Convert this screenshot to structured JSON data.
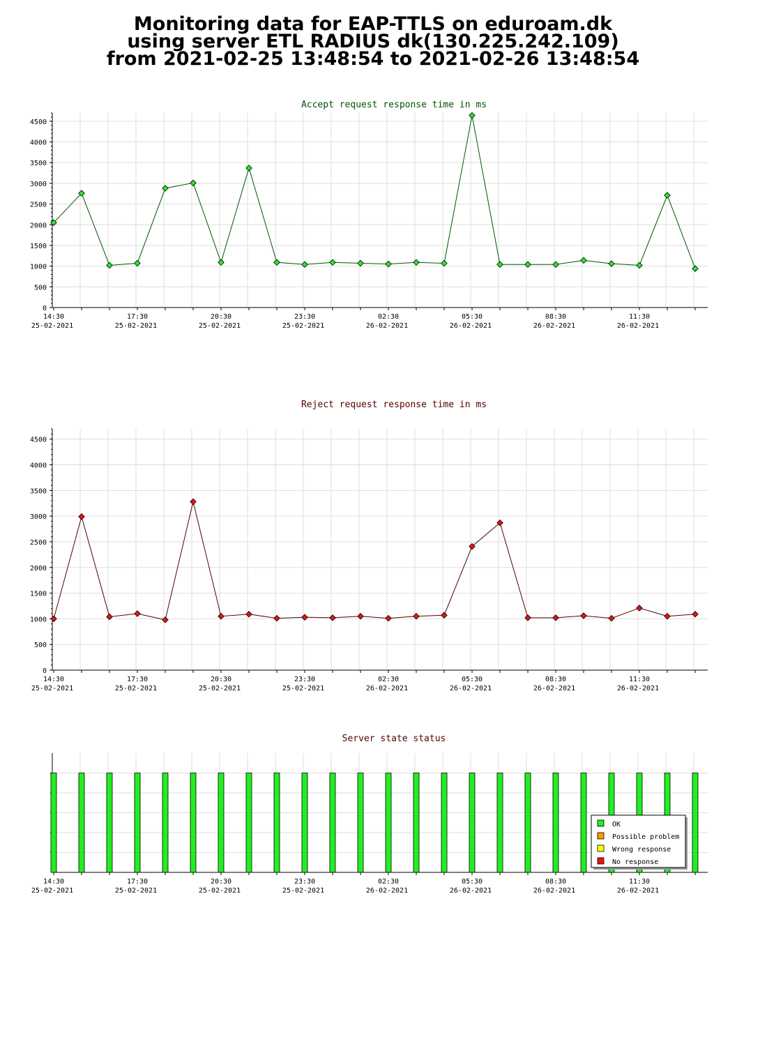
{
  "page": {
    "title_line1": "Monitoring data for EAP-TTLS on eduroam.dk",
    "title_line2": "using server ETL RADIUS dk(130.225.242.109)",
    "title_line3": "from 2021-02-25 13:48:54 to 2021-02-26 13:48:54"
  },
  "colors": {
    "accept_line": "#005500",
    "accept_marker": "#22ee22",
    "reject_line": "#550000",
    "reject_marker": "#ee1111",
    "title_accept": "#005500",
    "title_reject": "#550000",
    "status_ok": "#22ee22",
    "status_possible_problem": "#ff9900",
    "status_wrong_response": "#ffff00",
    "status_no_response": "#ee1111",
    "grid": "#dddddd"
  },
  "chart_data": [
    {
      "type": "line",
      "title": "Accept request response time in ms",
      "x": [
        "14:30",
        "15:30",
        "16:30",
        "17:30",
        "18:30",
        "19:30",
        "20:30",
        "21:30",
        "22:30",
        "23:30",
        "00:30",
        "01:30",
        "02:30",
        "03:30",
        "04:30",
        "05:30",
        "06:30",
        "07:30",
        "08:30",
        "09:30",
        "10:30",
        "11:30",
        "12:30",
        "13:30"
      ],
      "values": [
        2050,
        2760,
        1020,
        1070,
        2880,
        3010,
        1090,
        3370,
        1090,
        1040,
        1090,
        1070,
        1050,
        1090,
        1070,
        4640,
        1040,
        1040,
        1040,
        1140,
        1060,
        1020,
        2710,
        940
      ],
      "ylim": [
        0,
        4700
      ],
      "yticks": [
        0,
        500,
        1000,
        1500,
        2000,
        2500,
        3000,
        3500,
        4000,
        4500
      ],
      "xtick_labels": [
        {
          "time": "14:30",
          "date": "25-02-2021"
        },
        {
          "time": "17:30",
          "date": "25-02-2021"
        },
        {
          "time": "20:30",
          "date": "25-02-2021"
        },
        {
          "time": "23:30",
          "date": "25-02-2021"
        },
        {
          "time": "02:30",
          "date": "26-02-2021"
        },
        {
          "time": "05:30",
          "date": "26-02-2021"
        },
        {
          "time": "08:30",
          "date": "26-02-2021"
        },
        {
          "time": "11:30",
          "date": "26-02-2021"
        }
      ],
      "grid": true
    },
    {
      "type": "line",
      "title": "Reject request response time in ms",
      "x": [
        "14:30",
        "15:30",
        "16:30",
        "17:30",
        "18:30",
        "19:30",
        "20:30",
        "21:30",
        "22:30",
        "23:30",
        "00:30",
        "01:30",
        "02:30",
        "03:30",
        "04:30",
        "05:30",
        "06:30",
        "07:30",
        "08:30",
        "09:30",
        "10:30",
        "11:30",
        "12:30",
        "13:30"
      ],
      "values": [
        1000,
        2990,
        1040,
        1100,
        980,
        3280,
        1050,
        1090,
        1010,
        1030,
        1020,
        1050,
        1010,
        1050,
        1070,
        2410,
        2870,
        1020,
        1020,
        1060,
        1010,
        1210,
        1050,
        1090
      ],
      "ylim": [
        0,
        4700
      ],
      "yticks": [
        0,
        500,
        1000,
        1500,
        2000,
        2500,
        3000,
        3500,
        4000,
        4500
      ],
      "xtick_labels": [
        {
          "time": "14:30",
          "date": "25-02-2021"
        },
        {
          "time": "17:30",
          "date": "25-02-2021"
        },
        {
          "time": "20:30",
          "date": "25-02-2021"
        },
        {
          "time": "23:30",
          "date": "25-02-2021"
        },
        {
          "time": "02:30",
          "date": "26-02-2021"
        },
        {
          "time": "05:30",
          "date": "26-02-2021"
        },
        {
          "time": "08:30",
          "date": "26-02-2021"
        },
        {
          "time": "11:30",
          "date": "26-02-2021"
        }
      ],
      "grid": true
    },
    {
      "type": "bar",
      "title": "Server state status",
      "x": [
        "14:30",
        "15:30",
        "16:30",
        "17:30",
        "18:30",
        "19:30",
        "20:30",
        "21:30",
        "22:30",
        "23:30",
        "00:30",
        "01:30",
        "02:30",
        "03:30",
        "04:30",
        "05:30",
        "06:30",
        "07:30",
        "08:30",
        "09:30",
        "10:30",
        "11:30",
        "12:30",
        "13:30"
      ],
      "states": [
        "OK",
        "OK",
        "OK",
        "OK",
        "OK",
        "OK",
        "OK",
        "OK",
        "OK",
        "OK",
        "OK",
        "OK",
        "OK",
        "OK",
        "OK",
        "OK",
        "OK",
        "OK",
        "OK",
        "OK",
        "OK",
        "OK",
        "OK",
        "OK"
      ],
      "xtick_labels": [
        {
          "time": "14:30",
          "date": "25-02-2021"
        },
        {
          "time": "17:30",
          "date": "25-02-2021"
        },
        {
          "time": "20:30",
          "date": "25-02-2021"
        },
        {
          "time": "23:30",
          "date": "25-02-2021"
        },
        {
          "time": "02:30",
          "date": "26-02-2021"
        },
        {
          "time": "05:30",
          "date": "26-02-2021"
        },
        {
          "time": "08:30",
          "date": "26-02-2021"
        },
        {
          "time": "11:30",
          "date": "26-02-2021"
        }
      ],
      "legend": {
        "placement": "bottom-right",
        "items": [
          {
            "label": "OK",
            "color_key": "status_ok"
          },
          {
            "label": "Possible problem",
            "color_key": "status_possible_problem"
          },
          {
            "label": "Wrong response",
            "color_key": "status_wrong_response"
          },
          {
            "label": "No response",
            "color_key": "status_no_response"
          }
        ]
      }
    }
  ]
}
